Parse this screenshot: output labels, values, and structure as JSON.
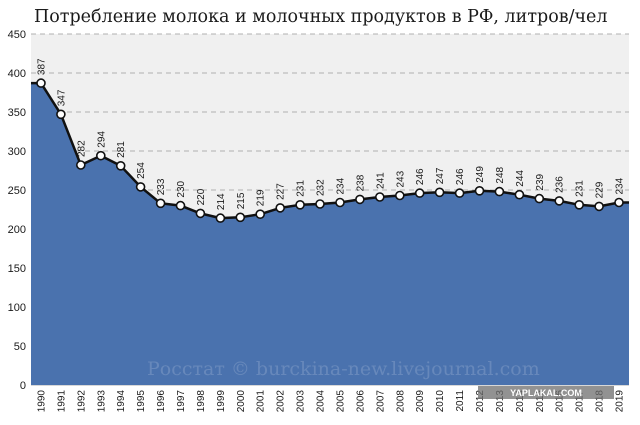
{
  "chart_data": {
    "type": "area",
    "title": "Потребление молока и молочных продуктов в РФ, литров/чел",
    "x": [
      "1990",
      "1991",
      "1992",
      "1993",
      "1994",
      "1995",
      "1996",
      "1997",
      "1998",
      "1999",
      "2000",
      "2001",
      "2002",
      "2003",
      "2004",
      "2005",
      "2006",
      "2007",
      "2008",
      "2009",
      "2010",
      "2011",
      "2012",
      "2013",
      "2014",
      "2015",
      "2016",
      "2017",
      "2018",
      "2019"
    ],
    "values": [
      387,
      347,
      282,
      294,
      281,
      254,
      233,
      230,
      220,
      214,
      215,
      219,
      227,
      231,
      232,
      234,
      238,
      241,
      243,
      246,
      247,
      246,
      249,
      248,
      244,
      239,
      236,
      231,
      229,
      234
    ],
    "yticks": [
      0,
      50,
      100,
      150,
      200,
      250,
      300,
      350,
      400,
      450
    ],
    "ylim": [
      0,
      450
    ],
    "grid": true,
    "fill_color": "#4a72ae",
    "line_color": "#111111",
    "plot_bg": "#f0f0f0"
  },
  "watermark": "Росстат © burckina-new.livejournal.com",
  "badge": "YAPLAKAL.COM"
}
